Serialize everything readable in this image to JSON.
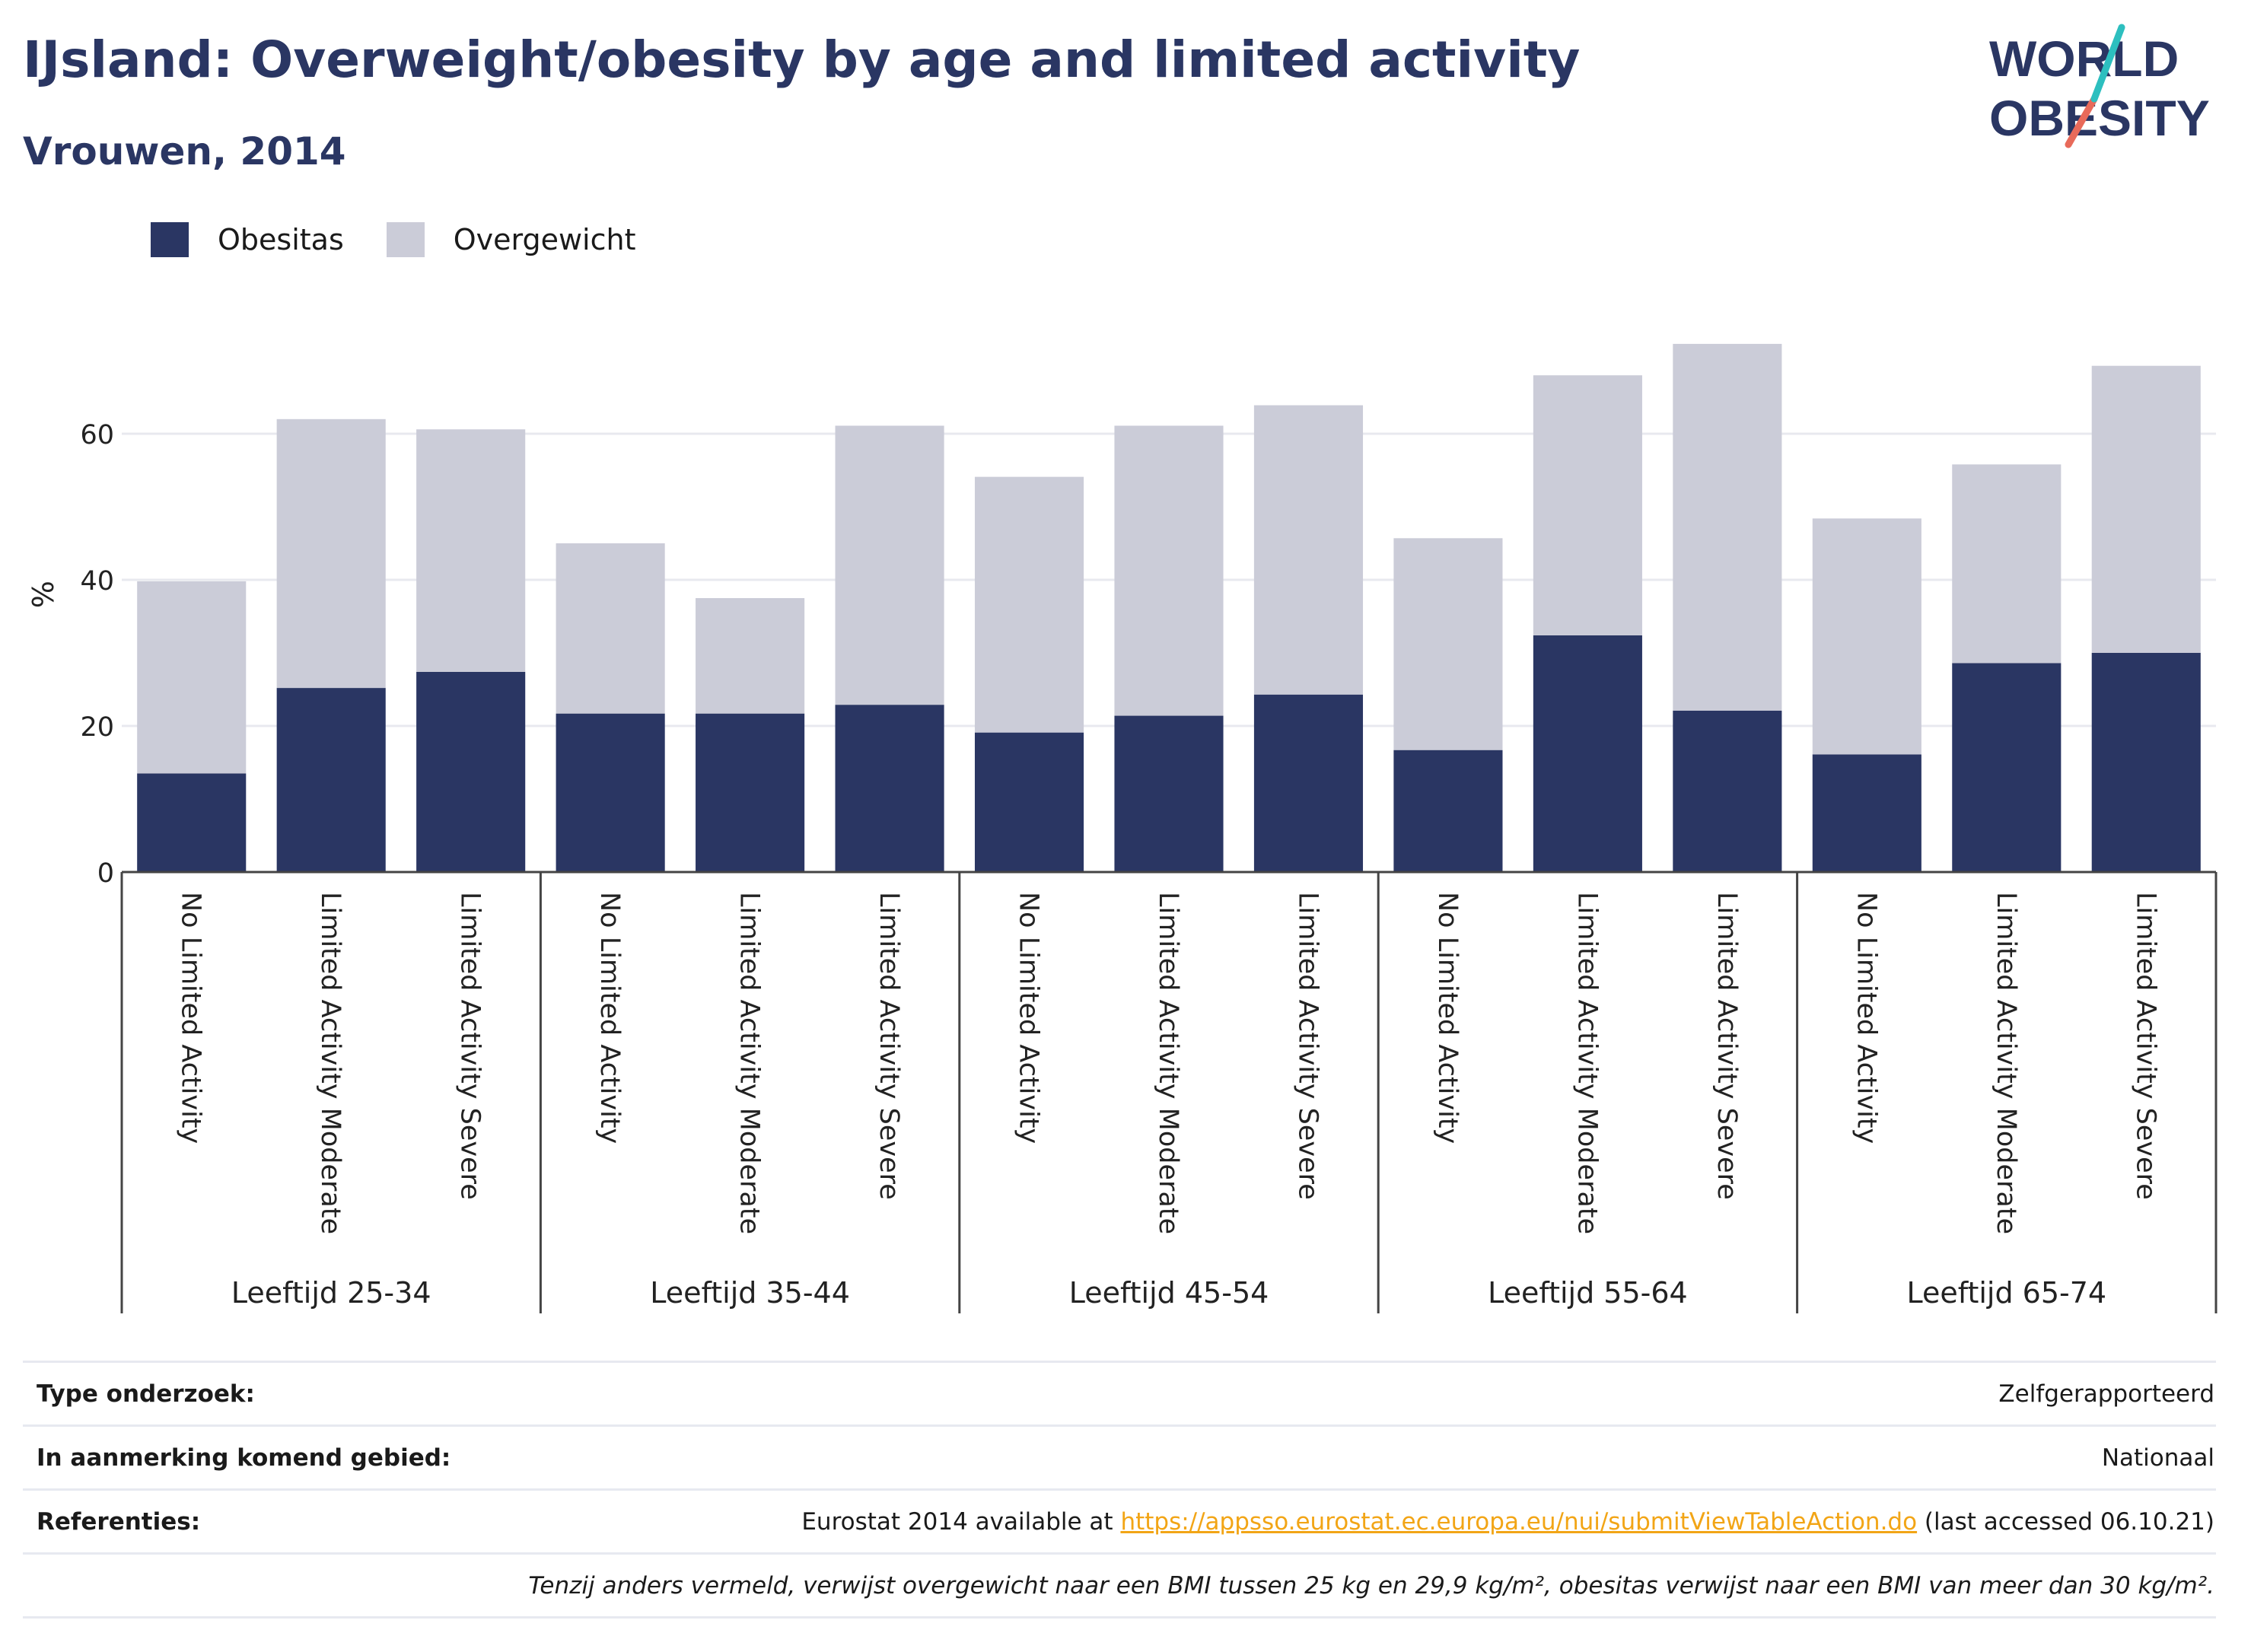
{
  "header": {
    "title": "IJsland: Overweight/obesity by age and limited activity",
    "subtitle": "Vrouwen, 2014"
  },
  "logo": {
    "line1": "WORLD",
    "line2": "OBESITY"
  },
  "colors": {
    "obesity": "#2a3663",
    "overweight": "#cbccd8",
    "title": "#2a3663",
    "link": "#f2a516",
    "logo_teal": "#2dbfbf",
    "logo_coral": "#e86a5a"
  },
  "legend": [
    {
      "label": "Obesitas",
      "color": "#2a3663"
    },
    {
      "label": "Overgewicht",
      "color": "#cbccd8"
    }
  ],
  "chart_data": {
    "type": "bar",
    "stacked": true,
    "ylabel": "%",
    "ylim": [
      0,
      75
    ],
    "yticks": [
      0,
      20,
      40,
      60
    ],
    "grid": true,
    "legend_position": "top-left",
    "groups": [
      {
        "label": "Leeftijd 25-34",
        "categories": [
          "No Limited Activity",
          "Limited Activity Moderate",
          "Limited Activity Severe"
        ]
      },
      {
        "label": "Leeftijd 35-44",
        "categories": [
          "No Limited Activity",
          "Limited Activity Moderate",
          "Limited Activity Severe"
        ]
      },
      {
        "label": "Leeftijd 45-54",
        "categories": [
          "No Limited Activity",
          "Limited Activity Moderate",
          "Limited Activity Severe"
        ]
      },
      {
        "label": "Leeftijd 55-64",
        "categories": [
          "No Limited Activity",
          "Limited Activity Moderate",
          "Limited Activity Severe"
        ]
      },
      {
        "label": "Leeftijd 65-74",
        "categories": [
          "No Limited Activity",
          "Limited Activity Moderate",
          "Limited Activity Severe"
        ]
      }
    ],
    "series": [
      {
        "name": "Obesitas",
        "values": [
          13.5,
          25.2,
          27.4,
          21.7,
          21.7,
          22.9,
          19.1,
          21.4,
          24.3,
          16.7,
          32.4,
          22.1,
          16.1,
          28.6,
          30.0
        ]
      },
      {
        "name": "Overgewicht",
        "values": [
          26.3,
          36.8,
          33.2,
          23.3,
          15.8,
          38.2,
          35.0,
          39.7,
          39.6,
          29.0,
          35.6,
          50.2,
          32.3,
          27.2,
          39.3
        ]
      }
    ]
  },
  "info": {
    "survey_label": "Type onderzoek:",
    "survey_value": "Zelfgerapporteerd",
    "area_label": "In aanmerking komend gebied:",
    "area_value": "Nationaal",
    "refs_label": "Referenties:",
    "refs_prefix": "Eurostat 2014 available at ",
    "refs_link": "https://appsso.eurostat.ec.europa.eu/nui/submitViewTableAction.do",
    "refs_suffix": " (last accessed 06.10.21)",
    "note": "Tenzij anders vermeld, verwijst overgewicht naar een BMI tussen 25 kg en 29,9 kg/m², obesitas verwijst naar een BMI van meer dan 30 kg/m²."
  }
}
